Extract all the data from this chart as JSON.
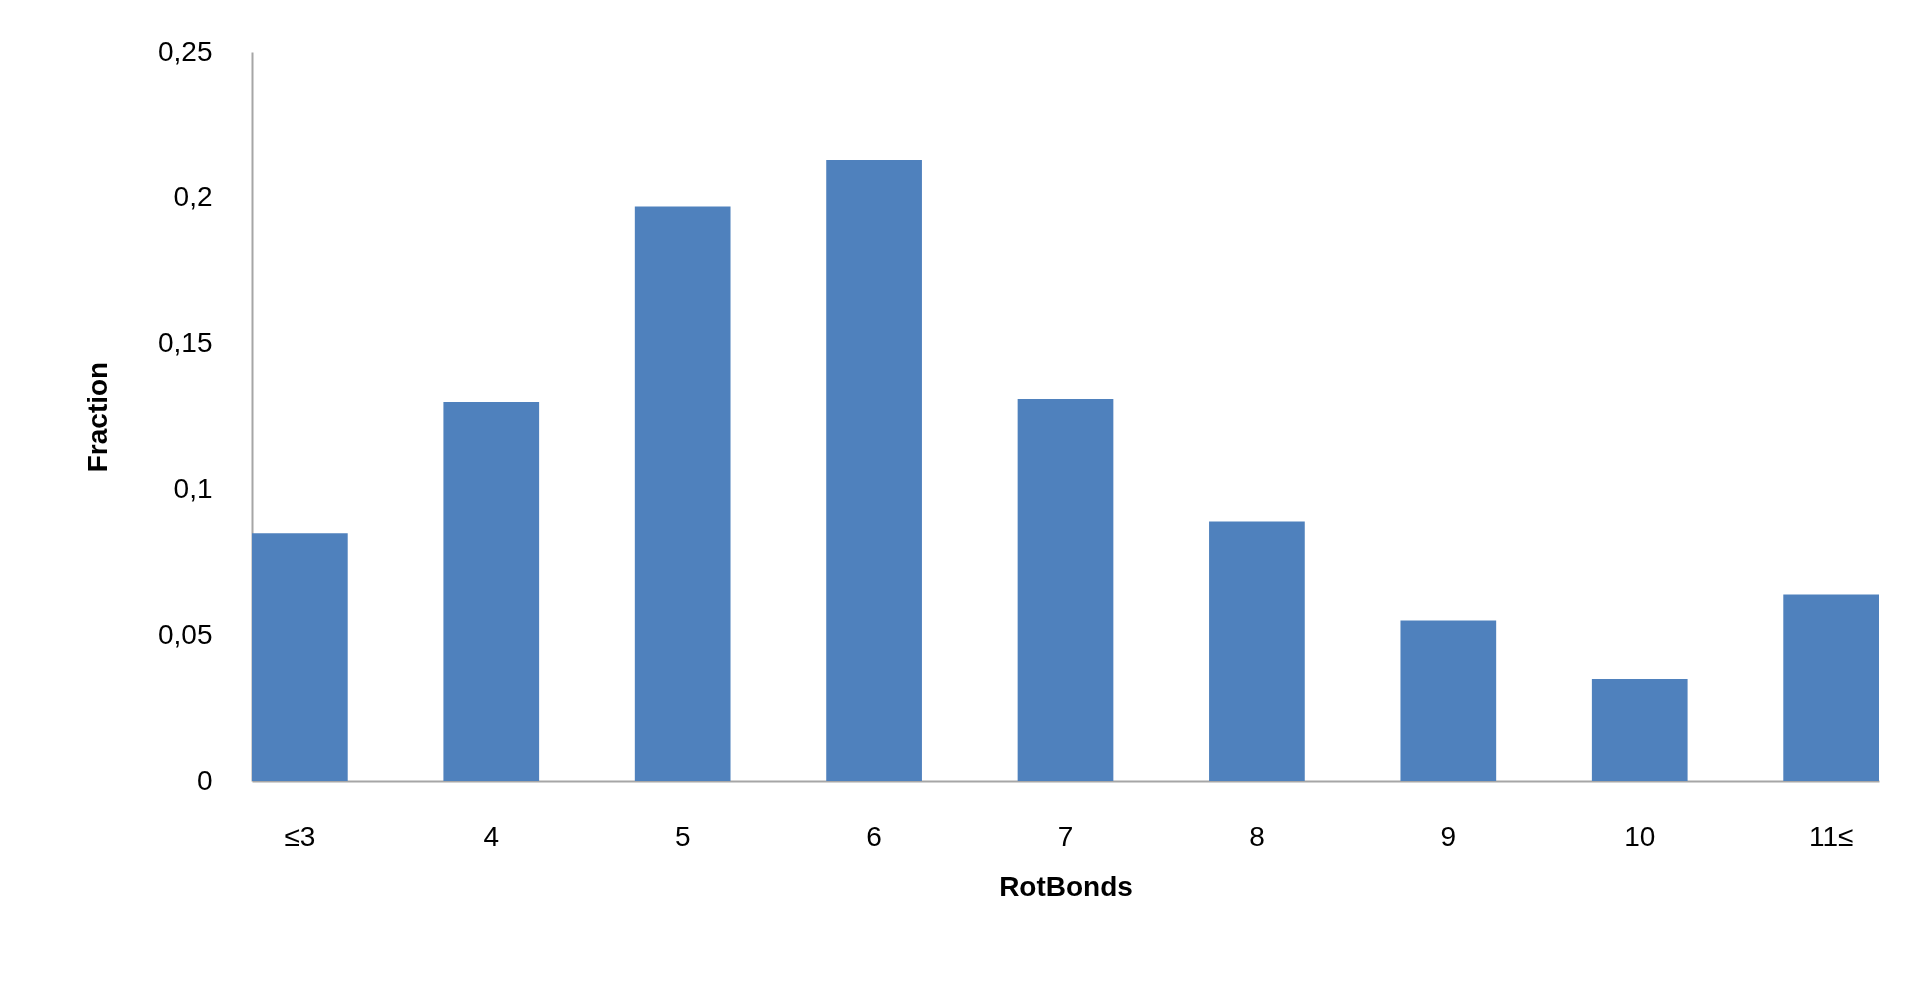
{
  "chart_data": {
    "type": "bar",
    "xlabel": "RotBonds",
    "ylabel": "Fraction",
    "categories": [
      "≤3",
      "4",
      "5",
      "6",
      "7",
      "8",
      "9",
      "10",
      "11≤"
    ],
    "values": [
      0.085,
      0.13,
      0.197,
      0.213,
      0.131,
      0.089,
      0.055,
      0.035,
      0.064
    ],
    "color": "#4f81bd",
    "ylim": [
      0,
      0.25
    ],
    "yticks": [
      {
        "value": 0,
        "label": "0"
      },
      {
        "value": 0.05,
        "label": "0,05"
      },
      {
        "value": 0.1,
        "label": "0,1"
      },
      {
        "value": 0.15,
        "label": "0,15"
      },
      {
        "value": 0.2,
        "label": "0,2"
      },
      {
        "value": 0.25,
        "label": "0,25"
      }
    ],
    "grid": false
  }
}
